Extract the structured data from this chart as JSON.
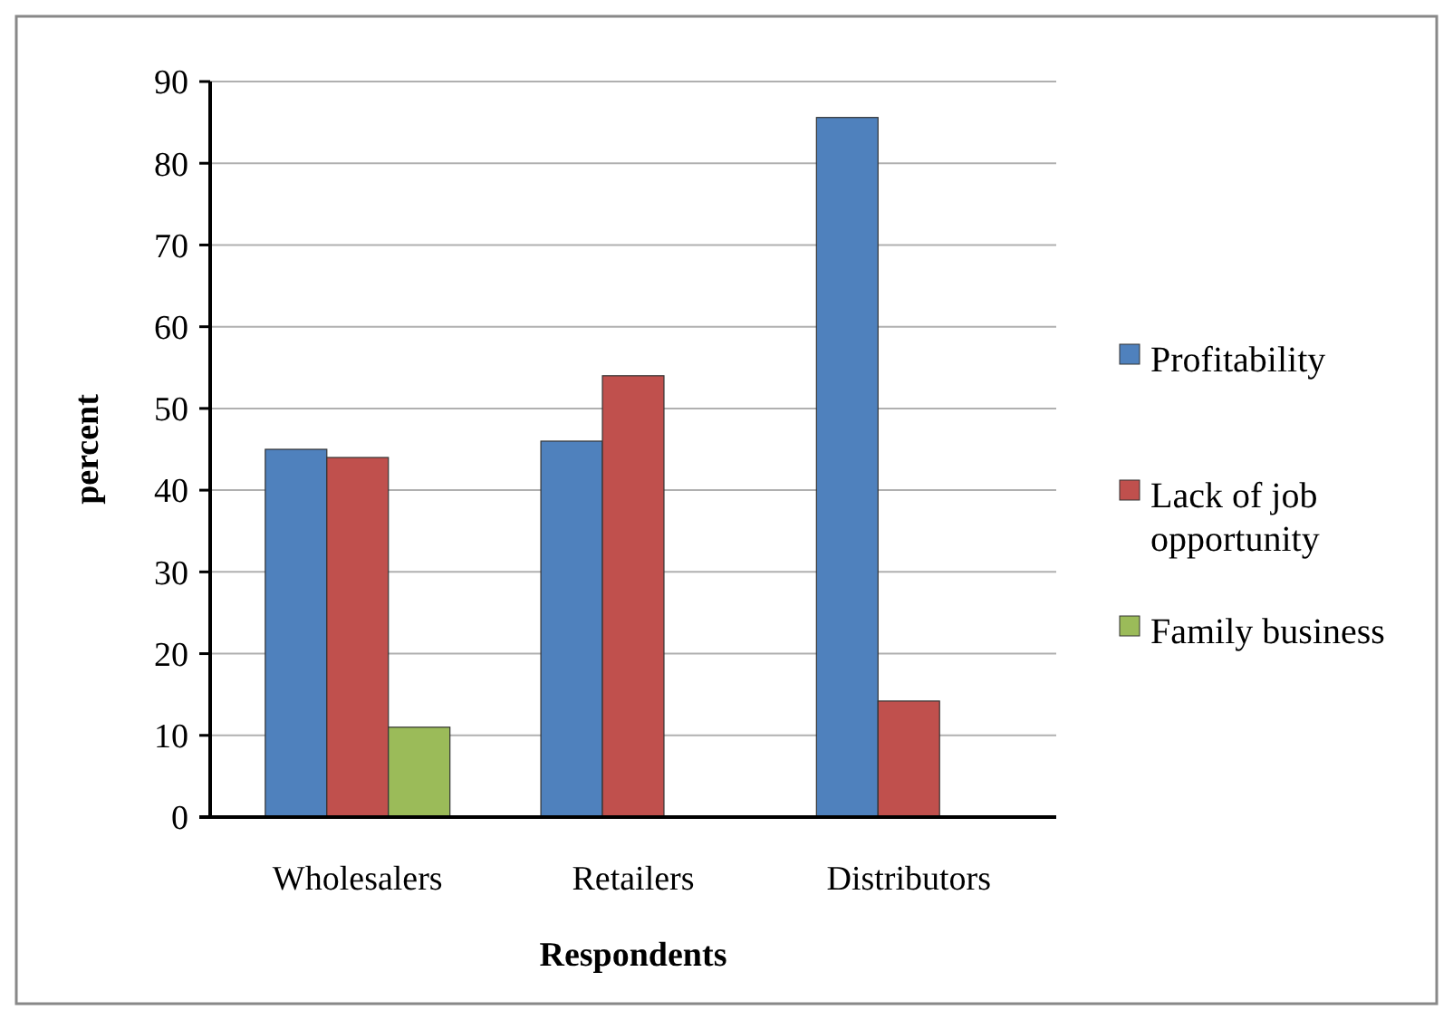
{
  "chart_data": {
    "type": "bar",
    "xlabel": "Respondents",
    "ylabel": "percent",
    "categories": [
      "Wholesalers",
      "Retailers",
      "Distributors"
    ],
    "series": [
      {
        "name": "Profitability",
        "color": "#4f81bd",
        "values": [
          45,
          46,
          85.6
        ]
      },
      {
        "name": "Lack of job opportunity",
        "color": "#c0504d",
        "values": [
          44,
          54,
          14.2
        ]
      },
      {
        "name": "Family business",
        "color": "#9bbb59",
        "values": [
          11,
          null,
          null
        ]
      }
    ],
    "ylim": [
      0,
      90
    ],
    "yticks": [
      0,
      10,
      20,
      30,
      40,
      50,
      60,
      70,
      80,
      90
    ],
    "grid": "y",
    "legend": "right"
  }
}
